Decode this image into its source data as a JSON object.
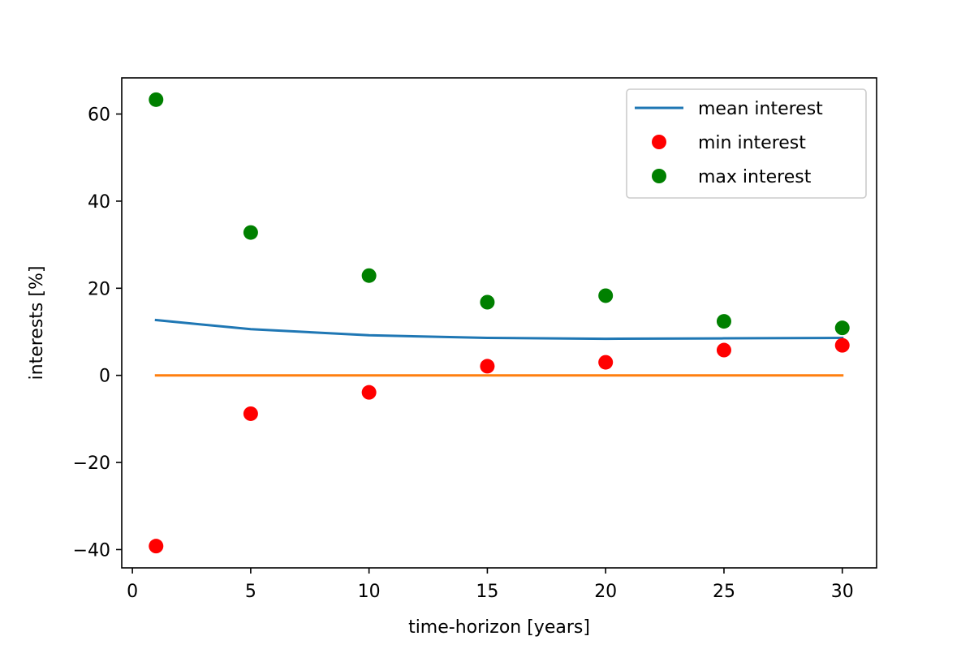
{
  "chart_data": {
    "type": "line",
    "title": "",
    "xlabel": "time-horizon [years]",
    "ylabel": "interests [%]",
    "x": [
      1,
      5,
      10,
      15,
      20,
      25,
      30
    ],
    "xlim": [
      -0.45,
      31.45
    ],
    "ylim": [
      -44.2,
      68.3
    ],
    "xticks": [
      0,
      5,
      10,
      15,
      20,
      25,
      30
    ],
    "xtick_labels": [
      "0",
      "5",
      "10",
      "15",
      "20",
      "25",
      "30"
    ],
    "yticks": [
      -40,
      -20,
      0,
      20,
      40,
      60
    ],
    "ytick_labels": [
      "−40",
      "−20",
      "0",
      "20",
      "40",
      "60"
    ],
    "grid": false,
    "legend_position": "top-right",
    "series": [
      {
        "name": "mean interest",
        "kind": "line",
        "color": "#1f77b4",
        "values": [
          12.7,
          10.6,
          9.2,
          8.6,
          8.4,
          8.5,
          8.6
        ],
        "in_legend": true
      },
      {
        "kind": "line",
        "color": "#ff7f0e",
        "values": [
          0,
          0,
          0,
          0,
          0,
          0,
          0
        ],
        "in_legend": false
      },
      {
        "name": "min interest",
        "kind": "scatter",
        "color": "#ff0000",
        "values": [
          -39.2,
          -8.8,
          -3.9,
          2.1,
          3.0,
          5.8,
          6.9
        ],
        "in_legend": true
      },
      {
        "name": "max interest",
        "kind": "scatter",
        "color": "#008000",
        "values": [
          63.3,
          32.8,
          22.9,
          16.8,
          18.3,
          12.4,
          10.9
        ],
        "in_legend": true
      }
    ]
  }
}
